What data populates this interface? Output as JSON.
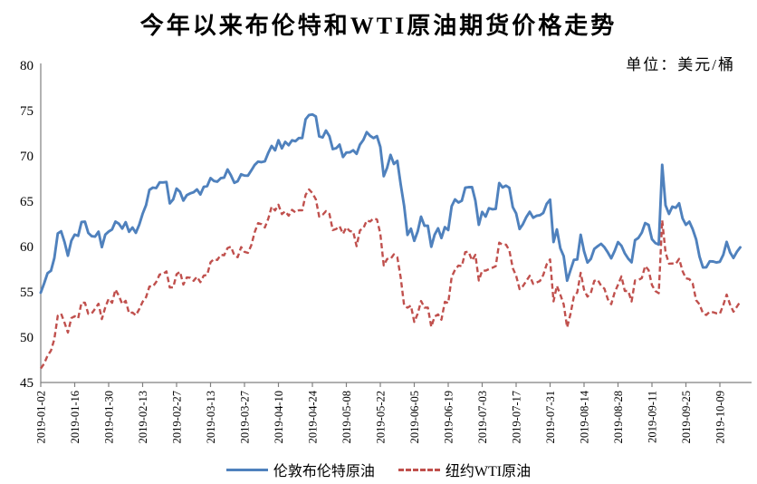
{
  "title": "今年以来布伦特和WTI原油期货价格走势",
  "unit_label": "单位：美元/桶",
  "colors": {
    "brent": "#4F81BD",
    "wti": "#C0504D",
    "axis": "#808080",
    "text": "#000000"
  },
  "chart_data": {
    "type": "line",
    "title": "今年以来布伦特和WTI原油期货价格走势",
    "unit": "美元/桶",
    "ylim": [
      45,
      80
    ],
    "ytick_step": 5,
    "grid": false,
    "legend_position": "bottom",
    "x_tick_every": 10,
    "x_tick_labels": [
      "2019-01-02",
      "2019-01-16",
      "2019-01-30",
      "2019-02-13",
      "2019-02-27",
      "2019-03-13",
      "2019-03-27",
      "2019-04-10",
      "2019-04-24",
      "2019-05-08",
      "2019-05-22",
      "2019-06-05",
      "2019-06-19",
      "2019-07-03",
      "2019-07-17",
      "2019-07-31",
      "2019-08-14",
      "2019-08-28",
      "2019-09-11",
      "2019-09-25",
      "2019-10-09"
    ],
    "series": [
      {
        "name": "伦敦布伦特原油",
        "color": "#4F81BD",
        "dash": "solid",
        "values": [
          54.91,
          55.95,
          57.06,
          57.33,
          58.72,
          61.44,
          61.68,
          60.48,
          58.99,
          60.64,
          61.32,
          61.18,
          62.7,
          62.74,
          61.5,
          61.14,
          61.09,
          61.64,
          59.93,
          61.32,
          61.65,
          61.89,
          62.75,
          62.51,
          61.98,
          62.69,
          61.63,
          62.1,
          61.51,
          62.42,
          63.61,
          64.57,
          66.25,
          66.5,
          66.45,
          67.08,
          67.07,
          67.12,
          64.76,
          65.21,
          66.39,
          66.03,
          65.07,
          65.67,
          65.86,
          65.99,
          66.3,
          65.74,
          66.58,
          66.67,
          67.55,
          67.23,
          67.16,
          67.54,
          67.61,
          68.5,
          67.86,
          67.03,
          67.21,
          67.97,
          67.83,
          67.82,
          68.39,
          69.01,
          69.37,
          69.31,
          69.4,
          70.34,
          71.1,
          70.61,
          71.73,
          70.83,
          71.55,
          71.18,
          71.72,
          71.62,
          71.97,
          71.97,
          74.04,
          74.51,
          74.57,
          74.35,
          72.15,
          72.04,
          72.8,
          72.18,
          70.75,
          70.85,
          71.24,
          69.88,
          70.37,
          70.39,
          70.62,
          70.23,
          71.24,
          71.77,
          72.62,
          72.21,
          71.97,
          72.18,
          70.99,
          67.76,
          68.69,
          70.11,
          69.11,
          69.45,
          66.87,
          64.49,
          61.28,
          61.97,
          60.63,
          61.67,
          63.29,
          62.29,
          62.29,
          59.97,
          61.31,
          62.01,
          60.94,
          62.14,
          61.82,
          64.45,
          65.2,
          64.86,
          65.05,
          66.49,
          66.55,
          66.55,
          65.06,
          62.4,
          63.82,
          63.3,
          64.23,
          64.11,
          64.16,
          67.01,
          66.52,
          66.72,
          66.48,
          64.35,
          63.66,
          61.93,
          62.47,
          63.26,
          63.83,
          63.18,
          63.39,
          63.46,
          63.71,
          64.72,
          65.17,
          60.5,
          61.89,
          59.81,
          58.94,
          56.23,
          57.38,
          58.53,
          58.57,
          61.3,
          59.48,
          58.23,
          58.64,
          59.74,
          60.03,
          60.3,
          59.92,
          59.34,
          58.7,
          59.51,
          60.49,
          60.08,
          59.25,
          58.66,
          58.26,
          60.7,
          60.95,
          61.54,
          62.59,
          62.38,
          60.81,
          60.38,
          60.22,
          69.02,
          64.55,
          63.6,
          64.4,
          64.28,
          64.77,
          63.1,
          62.39,
          62.74,
          61.91,
          60.78,
          58.89,
          57.69,
          57.71,
          58.37,
          58.35,
          58.24,
          58.32,
          59.1,
          60.51,
          59.35,
          58.74,
          59.42,
          59.91
        ]
      },
      {
        "name": "纽约WTI原油",
        "color": "#C0504D",
        "dash": "dashed",
        "values": [
          46.54,
          47.09,
          47.96,
          48.52,
          49.78,
          52.36,
          52.59,
          51.59,
          50.51,
          52.11,
          52.31,
          52.07,
          53.8,
          53.8,
          52.57,
          52.62,
          53.13,
          53.69,
          51.99,
          53.31,
          54.23,
          53.79,
          55.26,
          54.56,
          53.66,
          54.01,
          52.64,
          52.72,
          52.41,
          53.1,
          53.9,
          54.41,
          55.59,
          55.59,
          56.09,
          56.92,
          56.96,
          57.26,
          55.48,
          55.5,
          56.94,
          57.22,
          55.8,
          56.59,
          56.56,
          56.22,
          56.66,
          56.07,
          56.79,
          56.87,
          58.26,
          58.61,
          58.52,
          59.09,
          59.03,
          59.83,
          59.98,
          59.04,
          58.82,
          59.94,
          59.41,
          59.3,
          60.14,
          61.59,
          62.58,
          62.46,
          62.1,
          63.08,
          64.4,
          63.98,
          64.61,
          63.58,
          63.89,
          63.4,
          64.05,
          63.76,
          64.0,
          64.0,
          65.7,
          66.3,
          65.89,
          65.21,
          63.3,
          63.5,
          63.91,
          63.6,
          61.81,
          61.94,
          62.25,
          61.4,
          62.12,
          61.7,
          61.66,
          60.04,
          61.78,
          62.02,
          62.87,
          62.76,
          63.1,
          62.99,
          61.42,
          57.91,
          58.63,
          58.63,
          59.14,
          58.81,
          56.59,
          53.5,
          53.25,
          53.48,
          51.68,
          52.59,
          53.99,
          53.26,
          53.27,
          51.14,
          52.28,
          52.51,
          51.93,
          53.9,
          53.76,
          56.65,
          57.43,
          57.9,
          57.83,
          59.38,
          59.43,
          58.47,
          59.09,
          56.25,
          57.34,
          57.34,
          57.51,
          57.66,
          57.83,
          60.43,
          60.2,
          60.21,
          59.58,
          57.62,
          56.78,
          55.3,
          55.63,
          56.22,
          56.77,
          55.88,
          56.02,
          56.2,
          56.87,
          58.05,
          58.58,
          53.95,
          55.66,
          54.69,
          53.63,
          51.09,
          52.54,
          54.5,
          54.93,
          57.1,
          55.23,
          54.47,
          54.87,
          56.21,
          56.34,
          55.68,
          55.35,
          54.17,
          53.64,
          54.93,
          55.78,
          56.71,
          55.1,
          55.1,
          53.94,
          56.26,
          56.3,
          56.52,
          57.85,
          57.4,
          55.75,
          55.09,
          54.85,
          62.9,
          59.34,
          58.11,
          58.13,
          58.09,
          58.64,
          57.29,
          56.49,
          56.41,
          55.91,
          54.07,
          53.62,
          52.64,
          52.45,
          52.81,
          52.75,
          52.63,
          52.59,
          53.55,
          54.7,
          53.59,
          52.81,
          53.36,
          53.93
        ]
      }
    ]
  }
}
